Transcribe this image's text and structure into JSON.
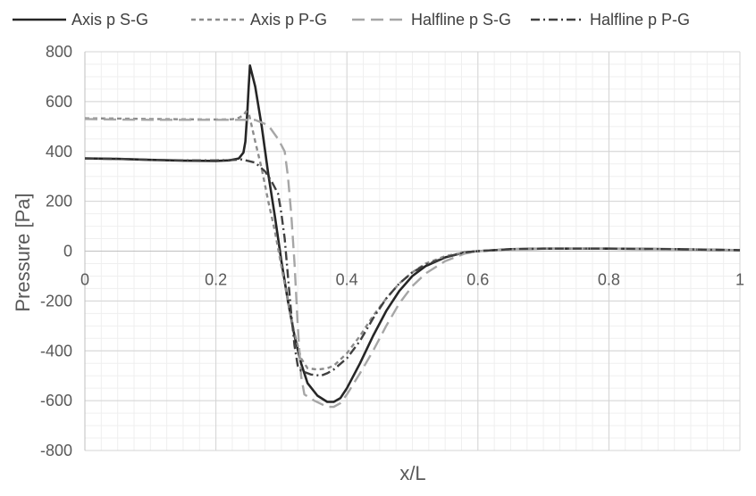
{
  "chart_data": {
    "type": "line",
    "xlabel": "x/L",
    "ylabel": "Pressure [Pa]",
    "xlim": [
      0,
      1
    ],
    "ylim": [
      -800,
      800
    ],
    "x_ticks": [
      "0",
      "0.2",
      "0.4",
      "0.6",
      "0.8",
      "1"
    ],
    "y_ticks": [
      "800",
      "600",
      "400",
      "200",
      "0",
      "-200",
      "-400",
      "-600",
      "-800"
    ],
    "grid": true,
    "legend_position": "top",
    "series": [
      {
        "name": "Axis p S-G",
        "color": "#262626",
        "dash": "solid",
        "points": [
          [
            0,
            372
          ],
          [
            0.05,
            370
          ],
          [
            0.1,
            366
          ],
          [
            0.15,
            363
          ],
          [
            0.2,
            362
          ],
          [
            0.22,
            364
          ],
          [
            0.235,
            372
          ],
          [
            0.242,
            395
          ],
          [
            0.245,
            440
          ],
          [
            0.248,
            560
          ],
          [
            0.25,
            660
          ],
          [
            0.252,
            745
          ],
          [
            0.26,
            660
          ],
          [
            0.27,
            500
          ],
          [
            0.28,
            310
          ],
          [
            0.29,
            140
          ],
          [
            0.3,
            -40
          ],
          [
            0.31,
            -200
          ],
          [
            0.32,
            -340
          ],
          [
            0.33,
            -450
          ],
          [
            0.34,
            -530
          ],
          [
            0.355,
            -580
          ],
          [
            0.37,
            -605
          ],
          [
            0.38,
            -605
          ],
          [
            0.39,
            -590
          ],
          [
            0.4,
            -550
          ],
          [
            0.42,
            -450
          ],
          [
            0.44,
            -340
          ],
          [
            0.46,
            -240
          ],
          [
            0.48,
            -160
          ],
          [
            0.5,
            -100
          ],
          [
            0.52,
            -60
          ],
          [
            0.55,
            -25
          ],
          [
            0.58,
            -5
          ],
          [
            0.6,
            0
          ],
          [
            0.65,
            8
          ],
          [
            0.7,
            10
          ],
          [
            0.8,
            10
          ],
          [
            0.9,
            8
          ],
          [
            1.0,
            4
          ]
        ]
      },
      {
        "name": "Axis p P-G",
        "color": "#8c8c8c",
        "dash": "dashed",
        "points": [
          [
            0,
            533
          ],
          [
            0.05,
            532
          ],
          [
            0.1,
            530
          ],
          [
            0.15,
            529
          ],
          [
            0.2,
            528
          ],
          [
            0.225,
            529
          ],
          [
            0.235,
            535
          ],
          [
            0.242,
            545
          ],
          [
            0.246,
            560
          ],
          [
            0.25,
            555
          ],
          [
            0.26,
            440
          ],
          [
            0.27,
            330
          ],
          [
            0.28,
            200
          ],
          [
            0.29,
            80
          ],
          [
            0.3,
            -60
          ],
          [
            0.31,
            -200
          ],
          [
            0.32,
            -330
          ],
          [
            0.33,
            -430
          ],
          [
            0.34,
            -470
          ],
          [
            0.355,
            -475
          ],
          [
            0.37,
            -470
          ],
          [
            0.38,
            -460
          ],
          [
            0.4,
            -410
          ],
          [
            0.42,
            -340
          ],
          [
            0.44,
            -260
          ],
          [
            0.46,
            -190
          ],
          [
            0.48,
            -130
          ],
          [
            0.5,
            -85
          ],
          [
            0.52,
            -50
          ],
          [
            0.55,
            -20
          ],
          [
            0.58,
            -5
          ],
          [
            0.6,
            0
          ],
          [
            0.65,
            7
          ],
          [
            0.7,
            10
          ],
          [
            0.8,
            10
          ],
          [
            0.9,
            8
          ],
          [
            1.0,
            4
          ]
        ]
      },
      {
        "name": "Halfline p S-G",
        "color": "#a6a6a6",
        "dash": "long-dash",
        "points": [
          [
            0,
            530
          ],
          [
            0.05,
            528
          ],
          [
            0.1,
            527
          ],
          [
            0.15,
            527
          ],
          [
            0.2,
            527
          ],
          [
            0.24,
            527
          ],
          [
            0.26,
            526
          ],
          [
            0.28,
            505
          ],
          [
            0.295,
            450
          ],
          [
            0.305,
            400
          ],
          [
            0.31,
            300
          ],
          [
            0.315,
            150
          ],
          [
            0.32,
            -50
          ],
          [
            0.325,
            -300
          ],
          [
            0.33,
            -500
          ],
          [
            0.335,
            -575
          ],
          [
            0.35,
            -600
          ],
          [
            0.37,
            -625
          ],
          [
            0.38,
            -625
          ],
          [
            0.39,
            -610
          ],
          [
            0.4,
            -575
          ],
          [
            0.42,
            -490
          ],
          [
            0.44,
            -400
          ],
          [
            0.46,
            -300
          ],
          [
            0.48,
            -210
          ],
          [
            0.5,
            -140
          ],
          [
            0.52,
            -90
          ],
          [
            0.55,
            -40
          ],
          [
            0.58,
            -10
          ],
          [
            0.6,
            0
          ],
          [
            0.65,
            8
          ],
          [
            0.7,
            10
          ],
          [
            0.8,
            10
          ],
          [
            0.9,
            8
          ],
          [
            1.0,
            4
          ]
        ]
      },
      {
        "name": "Halfline p P-G",
        "color": "#404040",
        "dash": "dash-dot",
        "points": [
          [
            0,
            372
          ],
          [
            0.05,
            370
          ],
          [
            0.1,
            366
          ],
          [
            0.15,
            364
          ],
          [
            0.2,
            364
          ],
          [
            0.22,
            365
          ],
          [
            0.24,
            368
          ],
          [
            0.26,
            355
          ],
          [
            0.275,
            320
          ],
          [
            0.285,
            280
          ],
          [
            0.295,
            230
          ],
          [
            0.3,
            150
          ],
          [
            0.305,
            50
          ],
          [
            0.31,
            -100
          ],
          [
            0.315,
            -250
          ],
          [
            0.32,
            -380
          ],
          [
            0.325,
            -460
          ],
          [
            0.33,
            -480
          ],
          [
            0.345,
            -495
          ],
          [
            0.36,
            -500
          ],
          [
            0.37,
            -490
          ],
          [
            0.38,
            -475
          ],
          [
            0.4,
            -430
          ],
          [
            0.42,
            -360
          ],
          [
            0.44,
            -270
          ],
          [
            0.46,
            -190
          ],
          [
            0.48,
            -130
          ],
          [
            0.5,
            -85
          ],
          [
            0.52,
            -55
          ],
          [
            0.55,
            -25
          ],
          [
            0.58,
            -5
          ],
          [
            0.6,
            0
          ],
          [
            0.65,
            8
          ],
          [
            0.7,
            10
          ],
          [
            0.8,
            10
          ],
          [
            0.9,
            8
          ],
          [
            1.0,
            4
          ]
        ]
      }
    ]
  }
}
